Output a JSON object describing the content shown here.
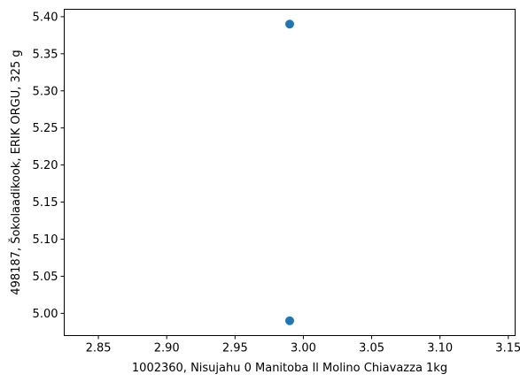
{
  "chart_data": {
    "type": "scatter",
    "xlabel": "1002360, Nisujahu 0 Manitoba Il Molino Chiavazza 1kg",
    "ylabel": "498187, Šokolaadikook, ERIK ORGU, 325 g",
    "xlim": [
      2.825,
      3.155
    ],
    "ylim": [
      4.97,
      5.41
    ],
    "x_ticks": [
      "2.85",
      "2.90",
      "2.95",
      "3.00",
      "3.05",
      "3.10",
      "3.15"
    ],
    "y_ticks": [
      "5.00",
      "5.05",
      "5.10",
      "5.15",
      "5.20",
      "5.25",
      "5.30",
      "5.35",
      "5.40"
    ],
    "points": [
      {
        "x": 2.99,
        "y": 5.39
      },
      {
        "x": 2.99,
        "y": 4.99
      }
    ],
    "marker_color": "#1f77b4",
    "grid": false,
    "legend": "none"
  }
}
